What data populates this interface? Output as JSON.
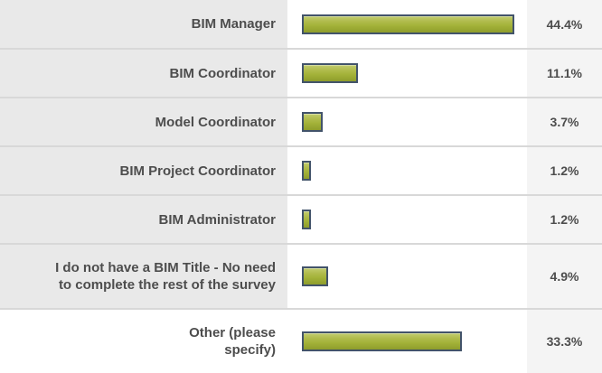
{
  "chart_data": {
    "type": "bar",
    "orientation": "horizontal",
    "title": "",
    "categories": [
      "BIM Manager",
      "BIM Coordinator",
      "Model Coordinator",
      "BIM Project Coordinator",
      "BIM Administrator",
      "I do not have a BIM Title - No need\nto complete the rest of the survey",
      "Other (please\nspecify)"
    ],
    "values": [
      44.4,
      11.1,
      3.7,
      1.2,
      1.2,
      4.9,
      33.3
    ],
    "value_labels": [
      "44.4%",
      "11.1%",
      "3.7%",
      "1.2%",
      "1.2%",
      "4.9%",
      "33.3%"
    ],
    "xlim": [
      0,
      48
    ],
    "grid": false,
    "legend": false
  },
  "rows": [
    {
      "label": "BIM Manager",
      "percent": "44.4%"
    },
    {
      "label": "BIM Coordinator",
      "percent": "11.1%"
    },
    {
      "label": "Model Coordinator",
      "percent": "3.7%"
    },
    {
      "label": "BIM Project Coordinator",
      "percent": "1.2%"
    },
    {
      "label": "BIM Administrator",
      "percent": "1.2%"
    },
    {
      "label": "I do not have a BIM Title - No need\nto complete the rest of the survey",
      "percent": "4.9%"
    },
    {
      "label": "Other (please\nspecify)",
      "percent": "33.3%"
    }
  ],
  "colors": {
    "bar_fill": "#a2b138",
    "bar_fill_light": "#c2cc6e",
    "bar_fill_dark": "#8e9d2b",
    "bar_border": "#42536a",
    "label_cell_bg": "#e9e9e9",
    "percent_cell_bg": "#f4f4f4",
    "separator": "#d8d8d8",
    "text": "#4d4d4d"
  }
}
